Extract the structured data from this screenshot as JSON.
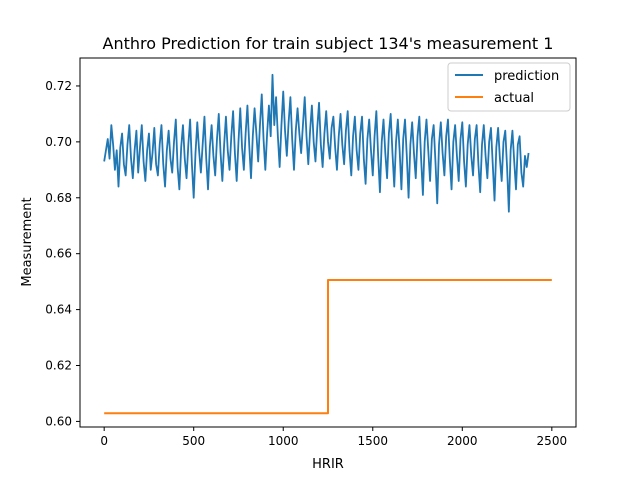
{
  "chart_data": {
    "type": "line",
    "title": "Anthro Prediction for train subject 134's measurement 1",
    "xlabel": "HRIR",
    "ylabel": "Measurement",
    "xlim": [
      -135,
      2635
    ],
    "ylim": [
      0.598,
      0.73
    ],
    "xticks": [
      0,
      500,
      1000,
      1500,
      2000,
      2500
    ],
    "xtick_labels": [
      "0",
      "500",
      "1000",
      "1500",
      "2000",
      "2500"
    ],
    "yticks": [
      0.6,
      0.62,
      0.64,
      0.66,
      0.68,
      0.7,
      0.72
    ],
    "ytick_labels": [
      "0.60",
      "0.62",
      "0.64",
      "0.66",
      "0.68",
      "0.70",
      "0.72"
    ],
    "grid": false,
    "legend_position": "upper right",
    "series": [
      {
        "name": "prediction",
        "color": "#1f77b4",
        "x_start": 0,
        "x_step": 10,
        "values": [
          0.693,
          0.697,
          0.701,
          0.694,
          0.706,
          0.699,
          0.69,
          0.697,
          0.684,
          0.698,
          0.703,
          0.692,
          0.688,
          0.699,
          0.706,
          0.694,
          0.687,
          0.697,
          0.704,
          0.689,
          0.698,
          0.706,
          0.693,
          0.686,
          0.697,
          0.703,
          0.69,
          0.696,
          0.705,
          0.692,
          0.688,
          0.699,
          0.706,
          0.692,
          0.684,
          0.697,
          0.704,
          0.694,
          0.689,
          0.7,
          0.708,
          0.691,
          0.683,
          0.698,
          0.706,
          0.694,
          0.687,
          0.699,
          0.708,
          0.692,
          0.68,
          0.696,
          0.707,
          0.697,
          0.689,
          0.699,
          0.709,
          0.694,
          0.683,
          0.698,
          0.706,
          0.695,
          0.688,
          0.701,
          0.71,
          0.696,
          0.686,
          0.699,
          0.709,
          0.697,
          0.69,
          0.702,
          0.711,
          0.696,
          0.686,
          0.7,
          0.712,
          0.698,
          0.69,
          0.703,
          0.713,
          0.699,
          0.687,
          0.702,
          0.712,
          0.703,
          0.693,
          0.706,
          0.717,
          0.701,
          0.69,
          0.703,
          0.713,
          0.702,
          0.724,
          0.706,
          0.716,
          0.702,
          0.691,
          0.706,
          0.718,
          0.704,
          0.695,
          0.707,
          0.716,
          0.701,
          0.69,
          0.704,
          0.712,
          0.703,
          0.696,
          0.706,
          0.716,
          0.702,
          0.692,
          0.704,
          0.713,
          0.7,
          0.693,
          0.705,
          0.714,
          0.699,
          0.691,
          0.703,
          0.711,
          0.7,
          0.694,
          0.705,
          0.709,
          0.698,
          0.69,
          0.702,
          0.71,
          0.699,
          0.692,
          0.704,
          0.711,
          0.697,
          0.688,
          0.702,
          0.709,
          0.697,
          0.69,
          0.703,
          0.709,
          0.694,
          0.685,
          0.701,
          0.708,
          0.697,
          0.688,
          0.702,
          0.711,
          0.695,
          0.682,
          0.7,
          0.708,
          0.696,
          0.687,
          0.703,
          0.71,
          0.696,
          0.684,
          0.7,
          0.708,
          0.697,
          0.683,
          0.701,
          0.708,
          0.695,
          0.68,
          0.699,
          0.707,
          0.696,
          0.687,
          0.702,
          0.709,
          0.694,
          0.681,
          0.7,
          0.708,
          0.697,
          0.686,
          0.701,
          0.706,
          0.693,
          0.678,
          0.699,
          0.707,
          0.696,
          0.688,
          0.702,
          0.708,
          0.694,
          0.683,
          0.7,
          0.706,
          0.695,
          0.686,
          0.701,
          0.707,
          0.693,
          0.684,
          0.699,
          0.706,
          0.695,
          0.688,
          0.701,
          0.706,
          0.692,
          0.682,
          0.699,
          0.706,
          0.695,
          0.687,
          0.7,
          0.705,
          0.692,
          0.679,
          0.698,
          0.705,
          0.694,
          0.686,
          0.7,
          0.704,
          0.691,
          0.675,
          0.697,
          0.704,
          0.693,
          0.683,
          0.699,
          0.702,
          0.689,
          0.684,
          0.695,
          0.691,
          0.696
        ]
      },
      {
        "name": "actual",
        "color": "#ff7f0e",
        "x": [
          0,
          1250,
          1250,
          2500
        ],
        "values": [
          0.6029,
          0.6029,
          0.6506,
          0.6506
        ]
      }
    ]
  }
}
